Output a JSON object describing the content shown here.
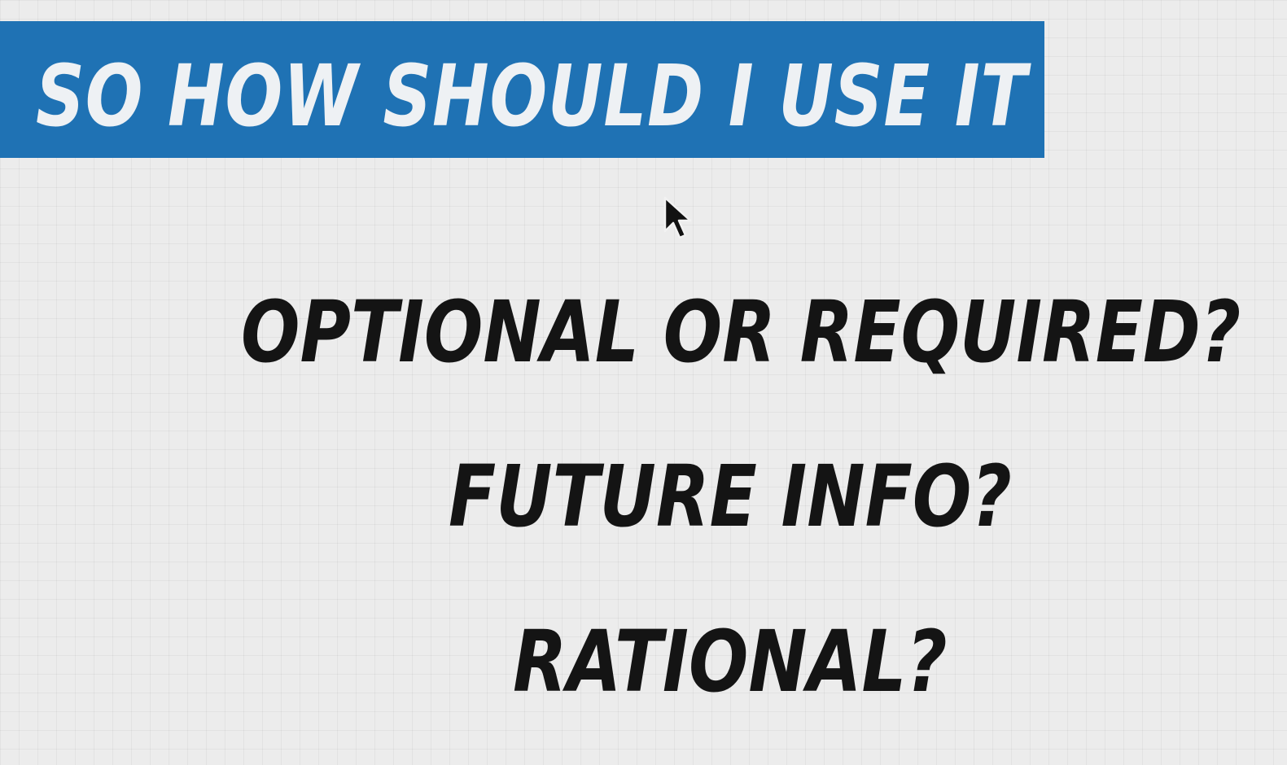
{
  "slide": {
    "title": "SO HOW SHOULD I USE IT",
    "questions": [
      "OPTIONAL OR REQUIRED?",
      "FUTURE INFO?",
      "RATIONAL?"
    ]
  },
  "colors": {
    "banner": "#1f72b4",
    "title_text": "#eef1f4",
    "question_text": "#141414",
    "background": "#ececec"
  },
  "icons": {
    "cursor": "mouse-pointer-icon"
  }
}
